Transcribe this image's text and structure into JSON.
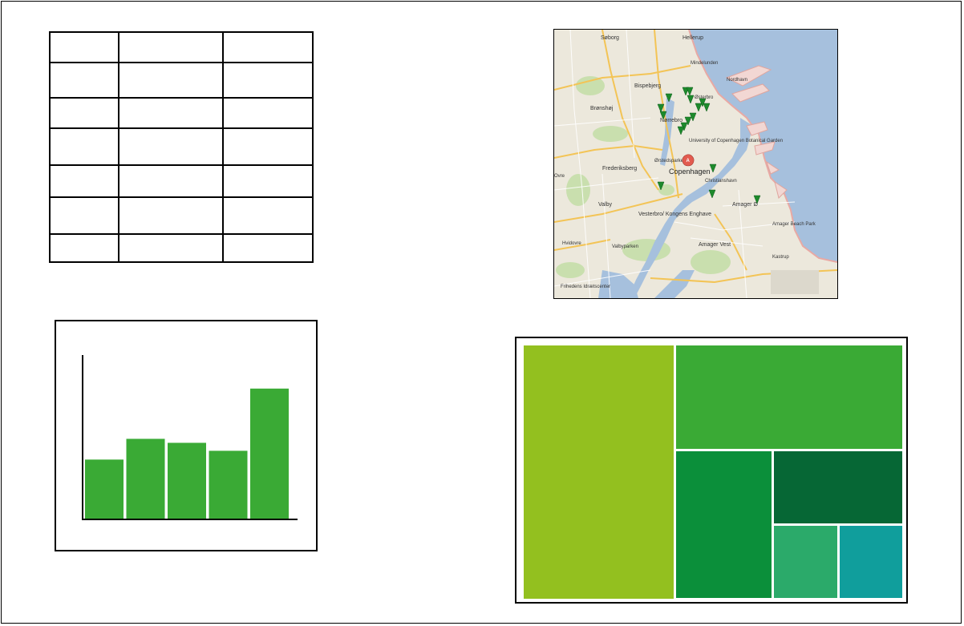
{
  "table": {
    "rows": 7,
    "columns": 3
  },
  "map": {
    "labels": {
      "soborg": "Søborg",
      "hellerup": "Hellerup",
      "mindelunden": "Mindelunden",
      "bispebjerg": "Bispebjerg",
      "bronshoj": "Brønshøj",
      "osterbro": "Østerbro",
      "norrebro": "Nørrebro",
      "nordhavn": "Nordhavn",
      "university": "University of Copenhagen Botanical Garden",
      "frederiksberg": "Frederiksberg",
      "orstedsparken": "Ørstedsparken",
      "copenhagen": "Copenhagen",
      "christianshavn": "Christianshavn",
      "valby": "Valby",
      "vesterbro": "Vesterbro/ Kongens Enghave",
      "amager_o": "Amager Ø",
      "amager_beach": "Amager Beach Park",
      "hvidovre": "Hvidovre",
      "valbyparken": "Valbyparken",
      "amager_vest": "Amager Vest",
      "kastrup": "Kastrup",
      "frihedens": "Frihedens Idrætscenter",
      "ovre": "Ovre",
      "marker": "A"
    },
    "markers": 17,
    "colors": {
      "water": "#a6c0dd",
      "land": "#ece8dc",
      "marker": "#1d8a2c",
      "pin": "#e25b4f"
    }
  },
  "chart_data": {
    "type": "bar",
    "categories": [
      "",
      "",
      "",
      "",
      ""
    ],
    "values": [
      74,
      100,
      95,
      85,
      163
    ],
    "ylim": [
      0,
      205
    ],
    "colors": {
      "bar": "#3aaa35"
    }
  },
  "treemap": {
    "tiles": [
      {
        "value": 40,
        "color": "#93c01f"
      },
      {
        "value": 25,
        "color": "#3aaa35"
      },
      {
        "value": 15,
        "color": "#0b8f3a"
      },
      {
        "value": 10,
        "color": "#066735"
      },
      {
        "value": 5,
        "color": "#2baa6a"
      },
      {
        "value": 5,
        "color": "#109e9c"
      }
    ]
  }
}
